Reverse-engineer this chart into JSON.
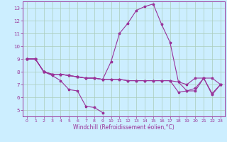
{
  "xlabel": "Windchill (Refroidissement éolien,°C)",
  "bg_color": "#cceeff",
  "grid_color": "#aaccbb",
  "line_color": "#993399",
  "xlim": [
    -0.5,
    23.5
  ],
  "ylim": [
    4.5,
    13.5
  ],
  "yticks": [
    5,
    6,
    7,
    8,
    9,
    10,
    11,
    12,
    13
  ],
  "xticks": [
    0,
    1,
    2,
    3,
    4,
    5,
    6,
    7,
    8,
    9,
    10,
    11,
    12,
    13,
    14,
    15,
    16,
    17,
    18,
    19,
    20,
    21,
    22,
    23
  ],
  "s1_x": [
    0,
    1,
    2,
    3,
    4,
    5,
    6,
    7,
    8,
    9
  ],
  "s1_y": [
    9.0,
    9.0,
    8.0,
    7.7,
    7.3,
    6.6,
    6.5,
    5.3,
    5.2,
    4.8
  ],
  "s2_x": [
    0,
    1,
    2,
    3,
    4,
    5,
    6,
    7,
    8,
    9,
    10,
    11,
    12,
    13,
    14,
    15,
    16,
    17,
    18,
    19,
    20,
    21,
    22,
    23
  ],
  "s2_y": [
    9.0,
    9.0,
    8.0,
    7.8,
    7.8,
    7.7,
    7.6,
    7.5,
    7.5,
    7.4,
    8.8,
    11.0,
    11.8,
    12.8,
    13.1,
    13.3,
    11.7,
    10.3,
    7.2,
    6.5,
    6.5,
    7.5,
    7.5,
    7.0
  ],
  "s3_x": [
    0,
    1,
    2,
    3,
    4,
    5,
    6,
    7,
    8,
    9,
    10,
    11,
    12,
    13,
    14,
    15,
    16,
    17,
    18,
    19,
    20,
    21,
    22,
    23
  ],
  "s3_y": [
    9.0,
    9.0,
    8.0,
    7.8,
    7.8,
    7.7,
    7.6,
    7.5,
    7.5,
    7.4,
    7.4,
    7.4,
    7.3,
    7.3,
    7.3,
    7.3,
    7.3,
    7.3,
    7.2,
    7.0,
    7.5,
    7.5,
    6.2,
    7.0
  ],
  "s4_x": [
    0,
    1,
    2,
    3,
    4,
    5,
    6,
    7,
    8,
    9,
    10,
    11,
    12,
    13,
    14,
    15,
    16,
    17,
    18,
    19,
    20,
    21,
    22,
    23
  ],
  "s4_y": [
    9.0,
    9.0,
    8.0,
    7.8,
    7.8,
    7.7,
    7.6,
    7.5,
    7.5,
    7.4,
    7.4,
    7.4,
    7.3,
    7.3,
    7.3,
    7.3,
    7.3,
    7.3,
    6.4,
    6.5,
    6.7,
    7.5,
    6.3,
    7.0
  ]
}
